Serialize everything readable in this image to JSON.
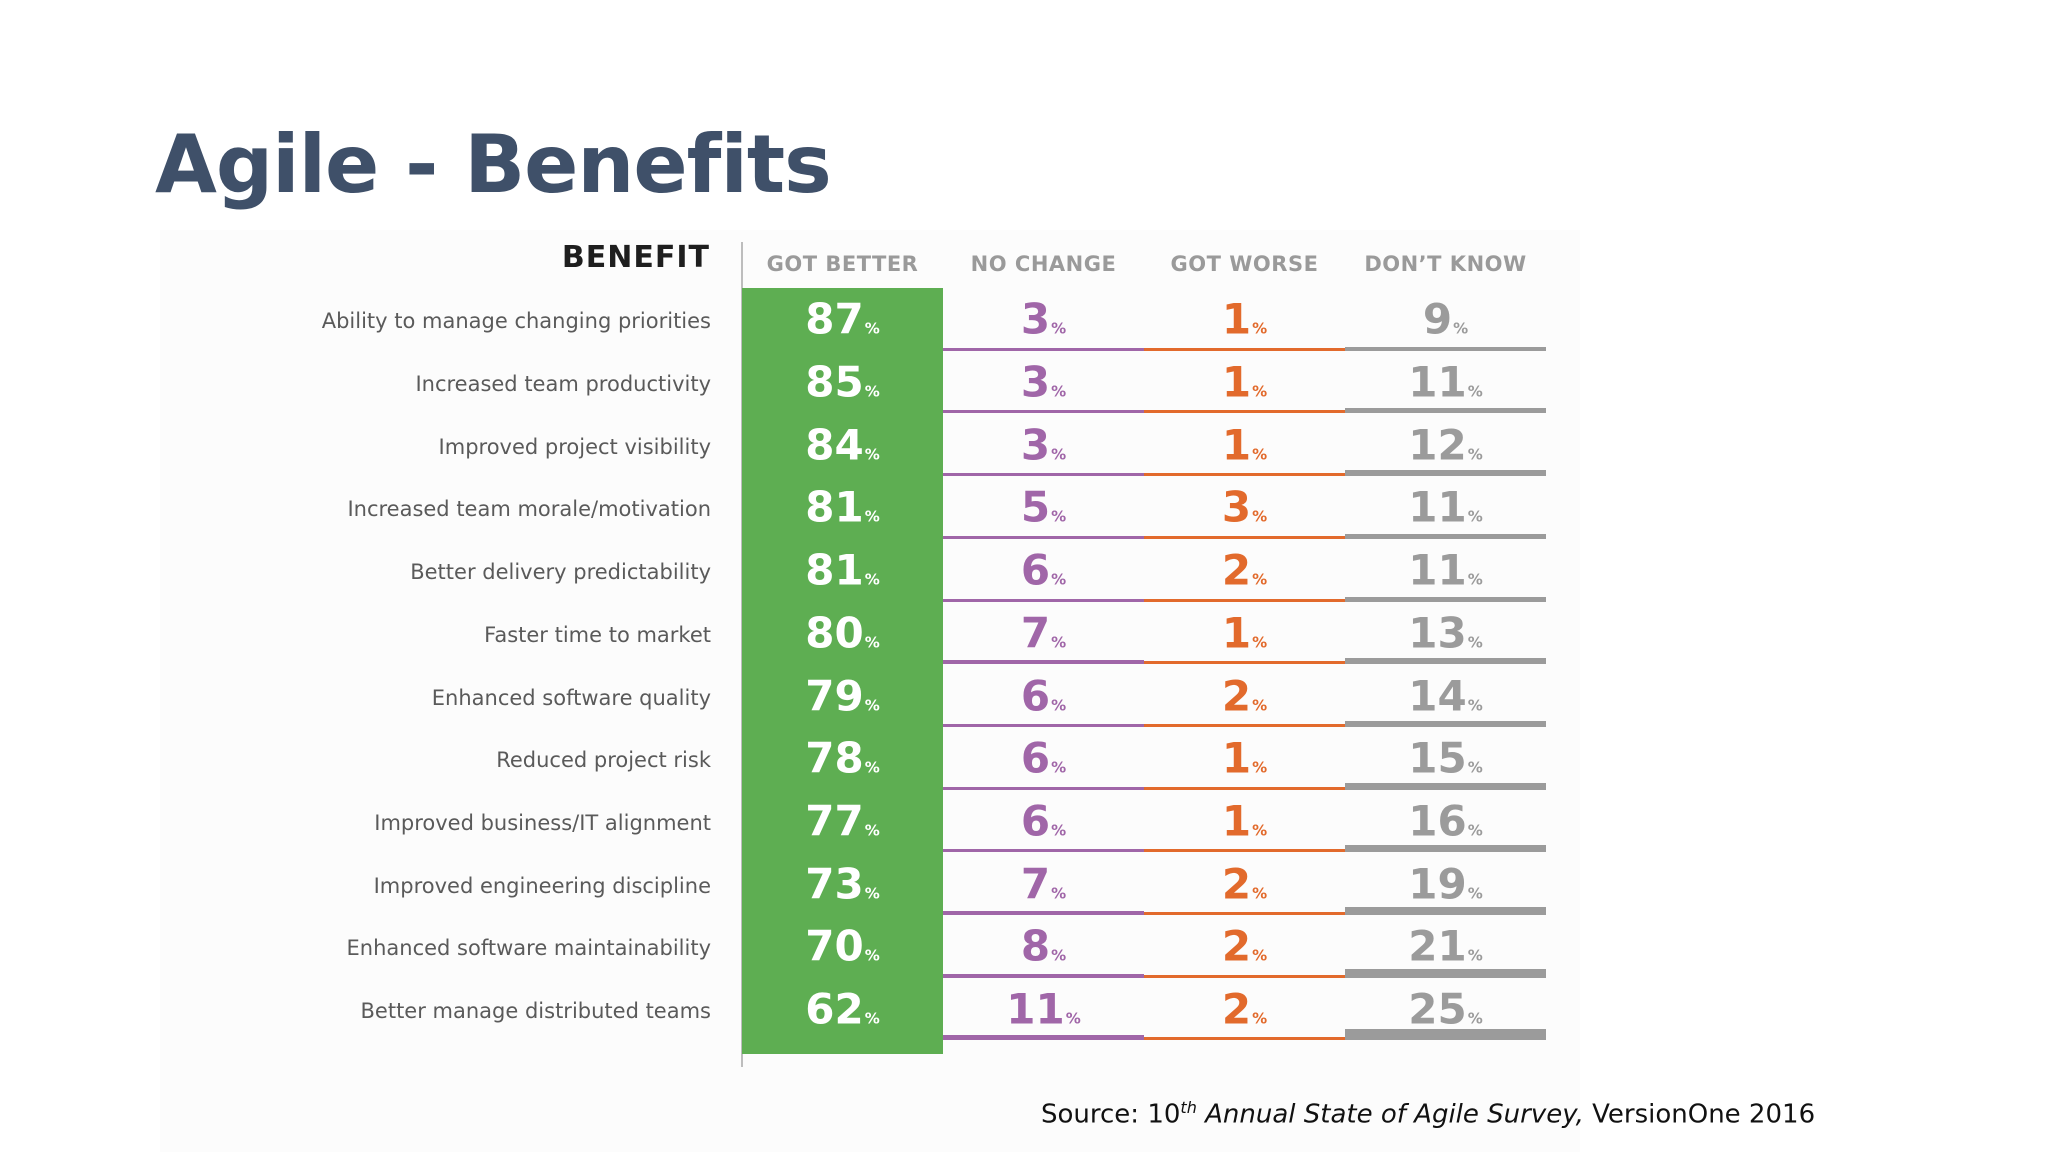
{
  "slide": {
    "title": "Agile - Benefits",
    "source_prefix": "Source: 10",
    "source_sup": "th",
    "source_italic": " Annual State of Agile Survey,",
    "source_suffix": " VersionOne 2016"
  },
  "chart_data": {
    "type": "table",
    "row_header": "BENEFIT",
    "unit": "%",
    "colors": {
      "got_better_bg": "#5eae52",
      "no_change": "#a066a8",
      "got_worse": "#e26a2c",
      "dont_know": "#9b9b9b"
    },
    "columns": [
      {
        "key": "got_better",
        "label": "GOT BETTER"
      },
      {
        "key": "no_change",
        "label": "NO CHANGE"
      },
      {
        "key": "got_worse",
        "label": "GOT WORSE"
      },
      {
        "key": "dont_know",
        "label": "DON’T KNOW"
      }
    ],
    "rows": [
      {
        "benefit": "Ability to manage changing priorities",
        "got_better": 87,
        "no_change": 3,
        "got_worse": 1,
        "dont_know": 9
      },
      {
        "benefit": "Increased team productivity",
        "got_better": 85,
        "no_change": 3,
        "got_worse": 1,
        "dont_know": 11
      },
      {
        "benefit": "Improved project visibility",
        "got_better": 84,
        "no_change": 3,
        "got_worse": 1,
        "dont_know": 12
      },
      {
        "benefit": "Increased team morale/motivation",
        "got_better": 81,
        "no_change": 5,
        "got_worse": 3,
        "dont_know": 11
      },
      {
        "benefit": "Better delivery predictability",
        "got_better": 81,
        "no_change": 6,
        "got_worse": 2,
        "dont_know": 11
      },
      {
        "benefit": "Faster time to market",
        "got_better": 80,
        "no_change": 7,
        "got_worse": 1,
        "dont_know": 13
      },
      {
        "benefit": "Enhanced software quality",
        "got_better": 79,
        "no_change": 6,
        "got_worse": 2,
        "dont_know": 14
      },
      {
        "benefit": "Reduced project risk",
        "got_better": 78,
        "no_change": 6,
        "got_worse": 1,
        "dont_know": 15
      },
      {
        "benefit": "Improved business/IT alignment",
        "got_better": 77,
        "no_change": 6,
        "got_worse": 1,
        "dont_know": 16
      },
      {
        "benefit": "Improved engineering discipline",
        "got_better": 73,
        "no_change": 7,
        "got_worse": 2,
        "dont_know": 19
      },
      {
        "benefit": "Enhanced software maintainability",
        "got_better": 70,
        "no_change": 8,
        "got_worse": 2,
        "dont_know": 21
      },
      {
        "benefit": "Better manage distributed teams",
        "got_better": 62,
        "no_change": 11,
        "got_worse": 2,
        "dont_know": 25
      }
    ]
  }
}
